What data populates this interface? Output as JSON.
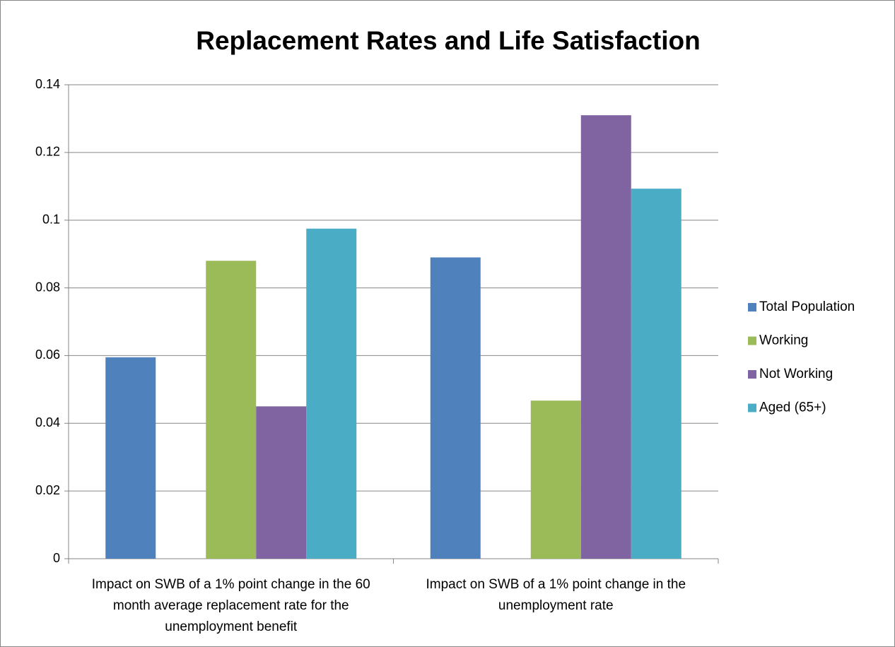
{
  "chart_data": {
    "type": "bar",
    "title": "Replacement Rates and Life Satisfaction",
    "categories": [
      "Impact on SWB of a 1% point change in the 60 month average replacement rate for the unemployment benefit",
      "Impact on SWB of a 1% point change in the unemployment rate"
    ],
    "series": [
      {
        "name": "Total Population",
        "color": "#4f81bd",
        "values": [
          0.0595,
          0.089
        ]
      },
      {
        "name": "Working",
        "color": "#9bbb59",
        "values": [
          0.088,
          0.0467
        ]
      },
      {
        "name": "Not Working",
        "color": "#8064a2",
        "values": [
          0.045,
          0.131
        ]
      },
      {
        "name": "Aged (65+)",
        "color": "#4bacc6",
        "values": [
          0.0975,
          0.1093
        ]
      }
    ],
    "ylim": [
      0,
      0.14
    ],
    "yticks": [
      0,
      0.02,
      0.04,
      0.06,
      0.08,
      0.1,
      0.12,
      0.14
    ],
    "grid": true,
    "legend": "right"
  }
}
